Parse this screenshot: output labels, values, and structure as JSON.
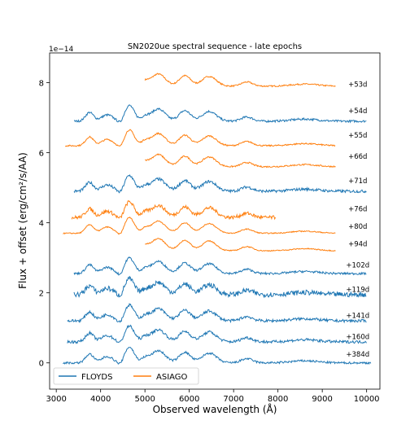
{
  "chart_data": {
    "type": "line",
    "title": "SN2020ue spectral sequence - late epochs",
    "xlabel": "Observed wavelength (Å)",
    "ylabel": "Flux + offset (erg/cm²/s/AA)",
    "y_multiplier_label": "1e−14",
    "xlim": [
      2850,
      10300
    ],
    "ylim": [
      -0.75,
      8.85
    ],
    "xticks": [
      3000,
      4000,
      5000,
      6000,
      7000,
      8000,
      9000,
      10000
    ],
    "yticks": [
      0,
      2,
      4,
      6,
      8
    ],
    "grid": false,
    "legend": {
      "position": "bottom-left",
      "ncol": 2,
      "entries": [
        "FLOYDS",
        "ASIAGO"
      ]
    },
    "colors": {
      "FLOYDS": "#1f77b4",
      "ASIAGO": "#ff7f0e",
      "axes": "#000000"
    },
    "series": [
      {
        "instrument": "ASIAGO",
        "label": "+53d",
        "offset": 7.9,
        "range": [
          5000,
          9300
        ],
        "noise": 0.02,
        "label_y": 7.95
      },
      {
        "instrument": "FLOYDS",
        "label": "+54d",
        "offset": 6.9,
        "range": [
          3400,
          10000
        ],
        "noise": 0.03,
        "label_y": 7.2
      },
      {
        "instrument": "ASIAGO",
        "label": "+55d",
        "offset": 6.2,
        "range": [
          3200,
          9300
        ],
        "noise": 0.02,
        "label_y": 6.5
      },
      {
        "instrument": "ASIAGO",
        "label": "+66d",
        "offset": 5.6,
        "range": [
          5000,
          9300
        ],
        "noise": 0.02,
        "label_y": 5.9
      },
      {
        "instrument": "FLOYDS",
        "label": "+71d",
        "offset": 4.9,
        "range": [
          3400,
          10000
        ],
        "noise": 0.04,
        "label_y": 5.2
      },
      {
        "instrument": "ASIAGO",
        "label": "+76d",
        "offset": 4.15,
        "range": [
          3350,
          7950
        ],
        "noise": 0.05,
        "label_y": 4.4
      },
      {
        "instrument": "ASIAGO",
        "label": "+80d",
        "offset": 3.7,
        "range": [
          3150,
          9300
        ],
        "noise": 0.015,
        "label_y": 3.9
      },
      {
        "instrument": "ASIAGO",
        "label": "+94d",
        "offset": 3.2,
        "range": [
          5000,
          9300
        ],
        "noise": 0.015,
        "label_y": 3.4
      },
      {
        "instrument": "FLOYDS",
        "label": "+102d",
        "offset": 2.55,
        "range": [
          3400,
          10000
        ],
        "noise": 0.03,
        "label_y": 2.8
      },
      {
        "instrument": "FLOYDS",
        "label": "+119d",
        "offset": 1.95,
        "range": [
          3400,
          10000
        ],
        "noise": 0.07,
        "label_y": 2.1
      },
      {
        "instrument": "FLOYDS",
        "label": "+141d",
        "offset": 1.2,
        "range": [
          3250,
          10000
        ],
        "noise": 0.04,
        "label_y": 1.35
      },
      {
        "instrument": "FLOYDS",
        "label": "+160d",
        "offset": 0.6,
        "range": [
          3250,
          10000
        ],
        "noise": 0.04,
        "label_y": 0.75
      },
      {
        "instrument": "FLOYDS",
        "label": "+384d",
        "offset": 0.0,
        "range": [
          3150,
          10100
        ],
        "noise": 0.03,
        "label_y": 0.25
      }
    ]
  }
}
